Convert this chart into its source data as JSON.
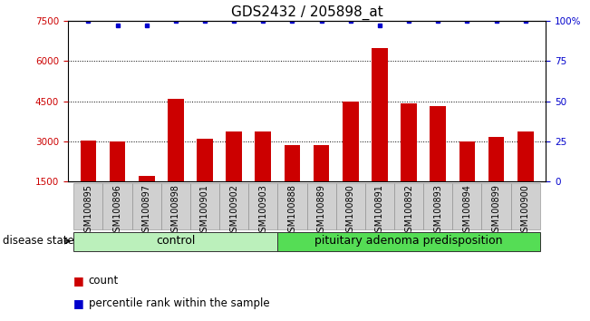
{
  "title": "GDS2432 / 205898_at",
  "samples": [
    "GSM100895",
    "GSM100896",
    "GSM100897",
    "GSM100898",
    "GSM100901",
    "GSM100902",
    "GSM100903",
    "GSM100888",
    "GSM100889",
    "GSM100890",
    "GSM100891",
    "GSM100892",
    "GSM100893",
    "GSM100894",
    "GSM100899",
    "GSM100900"
  ],
  "counts": [
    3020,
    3000,
    1700,
    4600,
    3100,
    3370,
    3370,
    2850,
    2860,
    4500,
    6500,
    4400,
    4320,
    3000,
    3150,
    3370
  ],
  "percentiles": [
    100,
    97,
    97,
    100,
    100,
    100,
    100,
    100,
    100,
    100,
    97,
    100,
    100,
    100,
    100,
    100
  ],
  "groups": [
    {
      "label": "control",
      "start": 0,
      "end": 7,
      "color": "#bbf0bb"
    },
    {
      "label": "pituitary adenoma predisposition",
      "start": 7,
      "end": 16,
      "color": "#55dd55"
    }
  ],
  "ylim_left": [
    1500,
    7500
  ],
  "ylim_right": [
    0,
    100
  ],
  "yticks_left": [
    1500,
    3000,
    4500,
    6000,
    7500
  ],
  "yticks_right": [
    0,
    25,
    50,
    75,
    100
  ],
  "bar_color": "#cc0000",
  "percentile_color": "#0000cc",
  "grid_color": "#000000",
  "background_color": "#ffffff",
  "plot_bg_color": "#ffffff",
  "tick_label_color_left": "#cc0000",
  "tick_label_color_right": "#0000cc",
  "disease_state_label": "disease state",
  "legend_count_label": "count",
  "legend_percentile_label": "percentile rank within the sample",
  "title_fontsize": 11,
  "tick_fontsize": 7.5,
  "label_fontsize": 9,
  "group_label_fontsize": 9
}
